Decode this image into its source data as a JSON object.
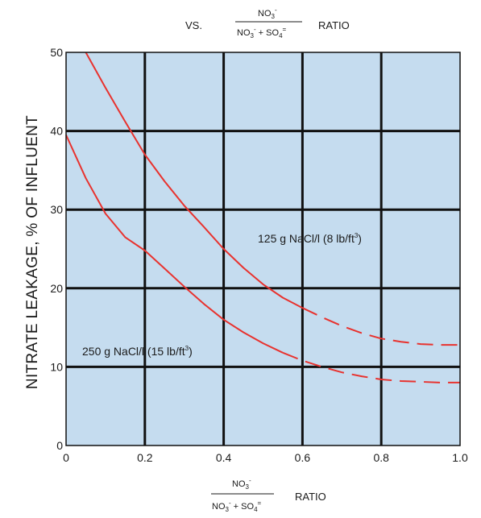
{
  "chart_data": {
    "type": "line",
    "title": {
      "prefix": "VS.",
      "numerator": "NO",
      "numerator_sub": "3",
      "numerator_sup": "-",
      "denominator_a": "NO",
      "denominator_a_sub": "3",
      "denominator_a_sup": "-",
      "denominator_plus": " + SO",
      "denominator_b_sub": "4",
      "denominator_b_sup": "=",
      "suffix": "RATIO"
    },
    "xlabel": {
      "numerator": "NO",
      "numerator_sub": "3",
      "numerator_sup": "-",
      "denominator_a": "NO",
      "denominator_a_sub": "3",
      "denominator_a_sup": "-",
      "denominator_plus": " + SO",
      "denominator_b_sub": "4",
      "denominator_b_sup": "=",
      "suffix": "RATIO"
    },
    "ylabel": "NITRATE LEAKAGE, % OF INFLUENT",
    "xlim": [
      0,
      1.0
    ],
    "ylim": [
      0,
      50
    ],
    "x_ticks": [
      "0",
      "0.2",
      "0.4",
      "0.6",
      "0.8",
      "1.0"
    ],
    "y_ticks": [
      "0",
      "10",
      "20",
      "30",
      "40",
      "50"
    ],
    "grid": true,
    "colors": {
      "background": "#c5dcef",
      "curve": "#e8322e",
      "grid": "#111111"
    },
    "series": [
      {
        "name": "125 g NaCl/l (8 lb/ft3)",
        "label_text": "125 g NaCl/l (8 lb/ft",
        "label_sup": "3",
        "label_close": ")",
        "solid_until": 0.6,
        "points": [
          [
            0.05,
            50
          ],
          [
            0.1,
            45.5
          ],
          [
            0.15,
            41.2
          ],
          [
            0.2,
            37
          ],
          [
            0.25,
            33.6
          ],
          [
            0.3,
            30.5
          ],
          [
            0.35,
            27.8
          ],
          [
            0.4,
            25
          ],
          [
            0.45,
            22.6
          ],
          [
            0.5,
            20.5
          ],
          [
            0.55,
            18.8
          ],
          [
            0.6,
            17.5
          ],
          [
            0.65,
            16.3
          ],
          [
            0.7,
            15.2
          ],
          [
            0.75,
            14.3
          ],
          [
            0.8,
            13.6
          ],
          [
            0.85,
            13.2
          ],
          [
            0.9,
            12.9
          ],
          [
            0.95,
            12.8
          ],
          [
            1.0,
            12.8
          ]
        ]
      },
      {
        "name": "250 g NaCl/l (15 lb/ft3)",
        "label_text": "250 g NaCl/l (15 lb/ft",
        "label_sup": "3",
        "label_close": ")",
        "solid_until": 0.57,
        "points": [
          [
            0,
            39.5
          ],
          [
            0.05,
            34
          ],
          [
            0.1,
            29.5
          ],
          [
            0.15,
            26.5
          ],
          [
            0.2,
            24.8
          ],
          [
            0.25,
            22.5
          ],
          [
            0.3,
            20.2
          ],
          [
            0.35,
            18
          ],
          [
            0.4,
            16
          ],
          [
            0.45,
            14.4
          ],
          [
            0.5,
            13
          ],
          [
            0.55,
            11.8
          ],
          [
            0.6,
            10.8
          ],
          [
            0.65,
            10
          ],
          [
            0.7,
            9.3
          ],
          [
            0.75,
            8.8
          ],
          [
            0.8,
            8.4
          ],
          [
            0.85,
            8.2
          ],
          [
            0.9,
            8.1
          ],
          [
            0.95,
            8.0
          ],
          [
            1.0,
            8.0
          ]
        ]
      }
    ]
  }
}
